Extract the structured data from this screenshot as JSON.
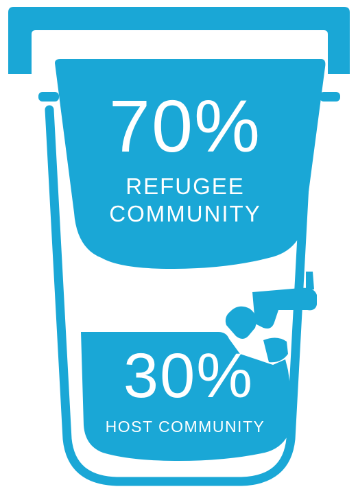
{
  "colors": {
    "primary": "#1aa7d6",
    "background": "#ffffff"
  },
  "illustration": "water-filter-icon",
  "refugee": {
    "percent": "70%",
    "label_line1": "REFUGEE",
    "label_line2": "COMMUNITY",
    "share": 70
  },
  "host": {
    "percent": "30%",
    "label": "HOST COMMUNITY",
    "share": 30
  }
}
